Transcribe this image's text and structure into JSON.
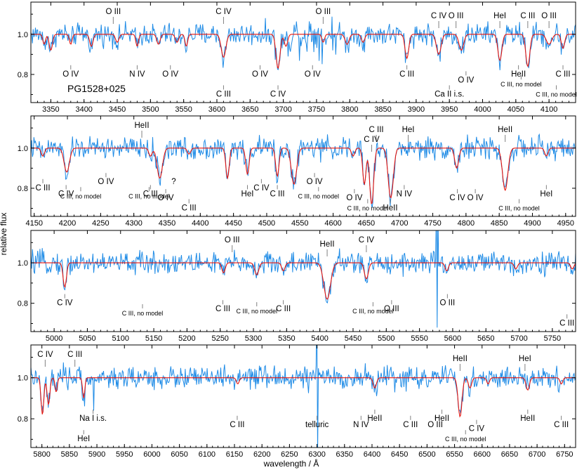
{
  "figure": {
    "object_label": "PG1528+025",
    "xlabel": "wavelength / Å",
    "ylabel": "relative flux",
    "colors": {
      "observed": "#1e8be6",
      "model": "#e8140c",
      "identifier": "#000000",
      "marker": "#808080"
    }
  },
  "chart_data": [
    {
      "type": "line",
      "xlim": [
        3320,
        4140
      ],
      "ylim": [
        0.66,
        1.16
      ],
      "xticks": [
        3350,
        3400,
        3450,
        3500,
        3550,
        3600,
        3650,
        3700,
        3750,
        3800,
        3850,
        3900,
        3950,
        4000,
        4050,
        4100
      ],
      "yticks": [
        0.8,
        1.0
      ],
      "series": [],
      "lines": [
        {
          "w": 3610,
          "d": 0.115,
          "s": 3.5
        },
        {
          "w": 3692,
          "d": 0.17,
          "s": 3.0
        },
        {
          "w": 3886,
          "d": 0.12,
          "s": 2.8
        },
        {
          "w": 3934,
          "d": 0.1,
          "s": 3.5
        },
        {
          "w": 3968,
          "d": 0.08,
          "s": 3.5
        },
        {
          "w": 4026,
          "d": 0.13,
          "s": 3.0
        },
        {
          "w": 4068,
          "d": 0.16,
          "s": 3.0
        },
        {
          "w": 4100,
          "d": 0.05,
          "s": 4.0
        },
        {
          "w": 4121,
          "d": 0.07,
          "s": 2.5
        },
        {
          "w": 3340,
          "d": 0.05,
          "s": 2.0
        },
        {
          "w": 3350,
          "d": 0.08,
          "s": 2.5
        },
        {
          "w": 3380,
          "d": 0.05,
          "s": 2.0
        },
        {
          "w": 3411,
          "d": 0.06,
          "s": 2.5
        },
        {
          "w": 3450,
          "d": 0.04,
          "s": 2.5
        },
        {
          "w": 3480,
          "d": 0.06,
          "s": 2.0
        },
        {
          "w": 3512,
          "d": 0.05,
          "s": 2.5
        },
        {
          "w": 3540,
          "d": 0.04,
          "s": 2.5
        },
        {
          "w": 3554,
          "d": 0.06,
          "s": 2.0
        },
        {
          "w": 3704,
          "d": 0.06,
          "s": 2.5
        },
        {
          "w": 3760,
          "d": 0.04,
          "s": 2.0
        },
        {
          "w": 3796,
          "d": 0.05,
          "s": 3.0
        },
        {
          "w": 3820,
          "d": 0.04,
          "s": 2.5
        }
      ],
      "annotations": [
        {
          "text": "O III",
          "w": 3444,
          "row": "t1"
        },
        {
          "text": "C IV",
          "w": 3610,
          "row": "t1"
        },
        {
          "text": "O III",
          "w": 3760,
          "row": "t1"
        },
        {
          "text": "C IV",
          "w": 3934,
          "row": "t2"
        },
        {
          "text": "O III",
          "w": 3960,
          "row": "t2"
        },
        {
          "text": "HeI",
          "w": 4026,
          "row": "t2"
        },
        {
          "text": "C III",
          "w": 4068,
          "row": "t2"
        },
        {
          "text": "O III",
          "w": 4100,
          "row": "t2"
        },
        {
          "text": "O IV",
          "w": 3380,
          "row": "b1"
        },
        {
          "text": "N IV",
          "w": 3480,
          "row": "b1"
        },
        {
          "text": "O IV",
          "w": 3530,
          "row": "b1"
        },
        {
          "text": "O IV",
          "w": 3665,
          "row": "b1"
        },
        {
          "text": "C III",
          "w": 3610,
          "row": "b2"
        },
        {
          "text": "O IV",
          "w": 3744,
          "row": "b1"
        },
        {
          "text": "C IV",
          "w": 3692,
          "row": "b3"
        },
        {
          "text": "C III",
          "w": 3886,
          "row": "b1"
        },
        {
          "text": "O IV",
          "w": 3975,
          "row": "b0"
        },
        {
          "text": "HeII",
          "w": 4054,
          "row": "b1"
        },
        {
          "text": "Ca II i.s.",
          "w": 3950,
          "row": "b2"
        },
        {
          "text": "C III, no model",
          "w": 4058,
          "row": "b0s",
          "small": true
        },
        {
          "text": "C III",
          "w": 4121,
          "row": "b1"
        },
        {
          "text": "C III, no model",
          "w": 4111,
          "row": "b2s",
          "small": true
        }
      ]
    },
    {
      "type": "line",
      "xlim": [
        4145,
        4965
      ],
      "ylim": [
        0.66,
        1.16
      ],
      "xticks": [
        4150,
        4200,
        4250,
        4300,
        4350,
        4400,
        4450,
        4500,
        4550,
        4600,
        4650,
        4700,
        4750,
        4800,
        4850,
        4900,
        4950
      ],
      "yticks": [
        0.8,
        1.0
      ],
      "series": [],
      "lines": [
        {
          "w": 4199,
          "d": 0.12,
          "s": 4.0
        },
        {
          "w": 4339,
          "d": 0.15,
          "s": 4.0
        },
        {
          "w": 4441,
          "d": 0.15,
          "s": 2.5
        },
        {
          "w": 4471,
          "d": 0.13,
          "s": 2.5
        },
        {
          "w": 4541,
          "d": 0.18,
          "s": 4.0
        },
        {
          "w": 4647,
          "d": 0.18,
          "s": 2.5
        },
        {
          "w": 4658,
          "d": 0.28,
          "s": 3.0
        },
        {
          "w": 4686,
          "d": 0.22,
          "s": 3.5
        },
        {
          "w": 4786,
          "d": 0.1,
          "s": 3.0
        },
        {
          "w": 4859,
          "d": 0.21,
          "s": 4.0
        },
        {
          "w": 4921,
          "d": 0.04,
          "s": 2.5
        },
        {
          "w": 4163,
          "d": 0.04,
          "s": 2.5
        },
        {
          "w": 4325,
          "d": 0.04,
          "s": 2.5
        },
        {
          "w": 4383,
          "d": 0.03,
          "s": 2.5
        },
        {
          "w": 4516,
          "d": 0.14,
          "s": 2.5
        },
        {
          "w": 4630,
          "d": 0.04,
          "s": 2.5
        },
        {
          "w": 4690,
          "d": 0.06,
          "s": 3.0
        }
      ],
      "annotations": [
        {
          "text": "HeII",
          "w": 4312,
          "row": "t1"
        },
        {
          "text": "C III",
          "w": 4665,
          "row": "t2"
        },
        {
          "text": "C IV",
          "w": 4658,
          "row": "t3"
        },
        {
          "text": "HeI",
          "w": 4713,
          "row": "t2"
        },
        {
          "text": "HeII",
          "w": 4859,
          "row": "t2"
        },
        {
          "text": "C III",
          "w": 4163,
          "row": "b1"
        },
        {
          "text": "C IV",
          "w": 4198,
          "row": "b0"
        },
        {
          "text": "C III, no model",
          "w": 4220,
          "row": "b1s",
          "small": true
        },
        {
          "text": "O IV",
          "w": 4258,
          "row": "b0m"
        },
        {
          "text": "C III",
          "w": 4325,
          "row": "b0"
        },
        {
          "text": "C III, no model",
          "w": 4323,
          "row": "b1s",
          "small": true
        },
        {
          "text": "?",
          "w": 4360,
          "row": "b0m"
        },
        {
          "text": "O IV",
          "w": 4348,
          "row": "b0x"
        },
        {
          "text": "C III",
          "w": 4383,
          "row": "b2"
        },
        {
          "text": "HeI",
          "w": 4471,
          "row": "b0"
        },
        {
          "text": "C III",
          "w": 4516,
          "row": "b0"
        },
        {
          "text": "C IV",
          "w": 4492,
          "row": "b1"
        },
        {
          "text": "O IV",
          "w": 4572,
          "row": "b0m"
        },
        {
          "text": "C III, no model",
          "w": 4578,
          "row": "b1s",
          "small": true
        },
        {
          "text": "O IV",
          "w": 4632,
          "row": "b0x"
        },
        {
          "text": "C III, no model",
          "w": 4652,
          "row": "b2s",
          "small": true
        },
        {
          "text": "N IV",
          "w": 4707,
          "row": "b0"
        },
        {
          "text": "HeII",
          "w": 4686,
          "row": "b2"
        },
        {
          "text": "C IV",
          "w": 4787,
          "row": "b0x"
        },
        {
          "text": "O IV",
          "w": 4814,
          "row": "b0x"
        },
        {
          "text": "HeI",
          "w": 4921,
          "row": "b0"
        },
        {
          "text": "C III, no model",
          "w": 4880,
          "row": "b2s",
          "small": true
        }
      ]
    },
    {
      "type": "line",
      "xlim": [
        4965,
        5785
      ],
      "ylim": [
        0.66,
        1.16
      ],
      "xticks": [
        5000,
        5050,
        5100,
        5150,
        5200,
        5250,
        5300,
        5350,
        5400,
        5450,
        5500,
        5550,
        5600,
        5650,
        5700,
        5750
      ],
      "yticks": [
        0.8,
        1.0
      ],
      "series": [],
      "lines": [
        {
          "w": 5016,
          "d": 0.12,
          "s": 2.5
        },
        {
          "w": 5255,
          "d": 0.05,
          "s": 2.5
        },
        {
          "w": 5305,
          "d": 0.06,
          "s": 3.0
        },
        {
          "w": 5345,
          "d": 0.04,
          "s": 2.5
        },
        {
          "w": 5411,
          "d": 0.18,
          "s": 5.0
        },
        {
          "w": 5470,
          "d": 0.08,
          "s": 3.0
        },
        {
          "w": 5591,
          "d": 0.04,
          "s": 2.5
        },
        {
          "w": 5695,
          "d": 0.03,
          "s": 2.5
        },
        {
          "w": 5780,
          "d": 0.03,
          "s": 2.5
        }
      ],
      "spikes": [
        {
          "w": 5577,
          "up": 0.28,
          "down": 0.32
        }
      ],
      "annotations": [
        {
          "text": "O III",
          "w": 5268,
          "row": "t1"
        },
        {
          "text": "C IV",
          "w": 5470,
          "row": "t1"
        },
        {
          "text": "HeII",
          "w": 5411,
          "row": "t2"
        },
        {
          "text": "C IV",
          "w": 5016,
          "row": "b1"
        },
        {
          "text": "C III, no model",
          "w": 5133,
          "row": "b0s",
          "small": true
        },
        {
          "text": "C III",
          "w": 5254,
          "row": "b0"
        },
        {
          "text": "C III, no model",
          "w": 5305,
          "row": "b1s",
          "small": true
        },
        {
          "text": "C III",
          "w": 5345,
          "row": "b0"
        },
        {
          "text": "C III, no model",
          "w": 5480,
          "row": "b1s",
          "small": true
        },
        {
          "text": "O III",
          "w": 5508,
          "row": "b0"
        },
        {
          "text": "O III",
          "w": 5592,
          "row": "b1"
        },
        {
          "text": "C III",
          "w": 5772,
          "row": "b2"
        }
      ]
    },
    {
      "type": "line",
      "xlim": [
        5780,
        6770
      ],
      "ylim": [
        0.66,
        1.16
      ],
      "xticks": [
        5800,
        5850,
        5900,
        5950,
        6000,
        6050,
        6100,
        6150,
        6200,
        6250,
        6300,
        6350,
        6400,
        6450,
        6500,
        6550,
        6600,
        6650,
        6700,
        6750
      ],
      "yticks": [
        0.8,
        1.0
      ],
      "series": [],
      "lines": [
        {
          "w": 5801,
          "d": 0.18,
          "s": 2.5
        },
        {
          "w": 5812,
          "d": 0.13,
          "s": 2.5
        },
        {
          "w": 5826,
          "d": 0.07,
          "s": 2.0
        },
        {
          "w": 5876,
          "d": 0.1,
          "s": 2.0
        },
        {
          "w": 6156,
          "d": 0.03,
          "s": 2.5
        },
        {
          "w": 6405,
          "d": 0.05,
          "s": 3.0
        },
        {
          "w": 6560,
          "d": 0.19,
          "s": 3.5
        },
        {
          "w": 6578,
          "d": 0.05,
          "s": 3.0
        },
        {
          "w": 6611,
          "d": 0.03,
          "s": 2.5
        },
        {
          "w": 6683,
          "d": 0.06,
          "s": 3.0
        },
        {
          "w": 6744,
          "d": 0.03,
          "s": 2.5
        }
      ],
      "spikes": [
        {
          "w": 5893,
          "up": 0.0,
          "down": 0.16
        },
        {
          "w": 6300,
          "up": 0.38,
          "down": 0.38
        }
      ],
      "annotations": [
        {
          "text": "C IV",
          "w": 5806,
          "row": "t1"
        },
        {
          "text": "C III",
          "w": 5860,
          "row": "t1"
        },
        {
          "text": "HeII",
          "w": 6560,
          "row": "t2"
        },
        {
          "text": "HeI",
          "w": 6678,
          "row": "t2"
        },
        {
          "text": "HeI",
          "w": 5876,
          "row": "b2"
        },
        {
          "text": "Na I i.s.",
          "w": 5893,
          "row": "b1"
        },
        {
          "text": "C III",
          "w": 6155,
          "row": "b0"
        },
        {
          "text": "telluric",
          "w": 6300,
          "row": "b0"
        },
        {
          "text": "N IV",
          "w": 6380,
          "row": "b0"
        },
        {
          "text": "HeII",
          "w": 6405,
          "row": "b1"
        },
        {
          "text": "C III",
          "w": 6470,
          "row": "b0"
        },
        {
          "text": "O III",
          "w": 6515,
          "row": "b0"
        },
        {
          "text": "HeII",
          "w": 6527,
          "row": "b1"
        },
        {
          "text": "C IV",
          "w": 6590,
          "row": "b0x"
        },
        {
          "text": "C III, no model",
          "w": 6570,
          "row": "b2s",
          "small": true
        },
        {
          "text": "HeII",
          "w": 6683,
          "row": "b1"
        },
        {
          "text": "C III",
          "w": 6744,
          "row": "b0"
        }
      ]
    }
  ]
}
